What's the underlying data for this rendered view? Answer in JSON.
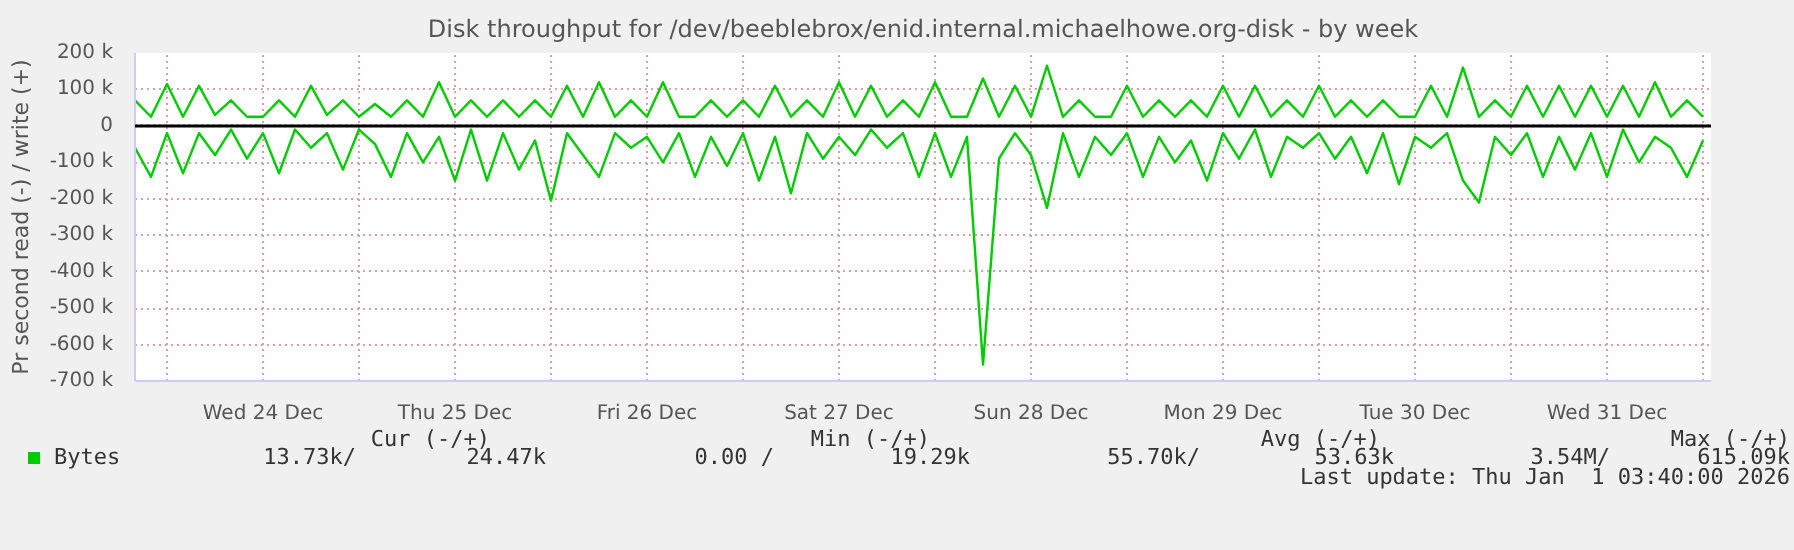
{
  "chart_data": {
    "type": "line",
    "title": "Disk throughput for /dev/beeblebrox/enid.internal.michaelhowe.org-disk - by week",
    "ylabel": "Pr second read (-) / write (+)",
    "x": [
      "2025-12-23T20:00",
      "2025-12-23T22:00",
      "2025-12-24T00:00",
      "2025-12-24T02:00",
      "2025-12-24T04:00",
      "2025-12-24T06:00",
      "2025-12-24T08:00",
      "2025-12-24T10:00",
      "2025-12-24T12:00",
      "2025-12-24T14:00",
      "2025-12-24T16:00",
      "2025-12-24T18:00",
      "2025-12-24T20:00",
      "2025-12-24T22:00",
      "2025-12-25T00:00",
      "2025-12-25T02:00",
      "2025-12-25T04:00",
      "2025-12-25T06:00",
      "2025-12-25T08:00",
      "2025-12-25T10:00",
      "2025-12-25T12:00",
      "2025-12-25T14:00",
      "2025-12-25T16:00",
      "2025-12-25T18:00",
      "2025-12-25T20:00",
      "2025-12-25T22:00",
      "2025-12-26T00:00",
      "2025-12-26T02:00",
      "2025-12-26T04:00",
      "2025-12-26T06:00",
      "2025-12-26T08:00",
      "2025-12-26T10:00",
      "2025-12-26T12:00",
      "2025-12-26T14:00",
      "2025-12-26T16:00",
      "2025-12-26T18:00",
      "2025-12-26T20:00",
      "2025-12-26T22:00",
      "2025-12-27T00:00",
      "2025-12-27T02:00",
      "2025-12-27T04:00",
      "2025-12-27T06:00",
      "2025-12-27T08:00",
      "2025-12-27T10:00",
      "2025-12-27T12:00",
      "2025-12-27T14:00",
      "2025-12-27T16:00",
      "2025-12-27T18:00",
      "2025-12-27T20:00",
      "2025-12-27T22:00",
      "2025-12-28T00:00",
      "2025-12-28T02:00",
      "2025-12-28T04:00",
      "2025-12-28T06:00",
      "2025-12-28T08:00",
      "2025-12-28T10:00",
      "2025-12-28T12:00",
      "2025-12-28T14:00",
      "2025-12-28T16:00",
      "2025-12-28T18:00",
      "2025-12-28T20:00",
      "2025-12-28T22:00",
      "2025-12-29T00:00",
      "2025-12-29T02:00",
      "2025-12-29T04:00",
      "2025-12-29T06:00",
      "2025-12-29T08:00",
      "2025-12-29T10:00",
      "2025-12-29T12:00",
      "2025-12-29T14:00",
      "2025-12-29T16:00",
      "2025-12-29T18:00",
      "2025-12-29T20:00",
      "2025-12-29T22:00",
      "2025-12-30T00:00",
      "2025-12-30T02:00",
      "2025-12-30T04:00",
      "2025-12-30T06:00",
      "2025-12-30T08:00",
      "2025-12-30T10:00",
      "2025-12-30T12:00",
      "2025-12-30T14:00",
      "2025-12-30T16:00",
      "2025-12-30T18:00",
      "2025-12-30T20:00",
      "2025-12-30T22:00",
      "2025-12-31T00:00",
      "2025-12-31T02:00",
      "2025-12-31T04:00",
      "2025-12-31T06:00",
      "2025-12-31T08:00",
      "2025-12-31T10:00",
      "2025-12-31T12:00",
      "2025-12-31T14:00",
      "2025-12-31T16:00",
      "2025-12-31T18:00",
      "2025-12-31T20:00",
      "2025-12-31T22:00",
      "2026-01-01T00:00"
    ],
    "series": [
      {
        "name": "Bytes",
        "color": "#00cc00",
        "values": [
          70000,
          25000,
          115000,
          25000,
          110000,
          30000,
          70000,
          25000,
          25000,
          70000,
          25000,
          110000,
          30000,
          70000,
          25000,
          60000,
          25000,
          70000,
          25000,
          120000,
          25000,
          70000,
          25000,
          70000,
          25000,
          70000,
          25000,
          110000,
          25000,
          120000,
          25000,
          70000,
          25000,
          120000,
          25000,
          25000,
          70000,
          25000,
          70000,
          25000,
          110000,
          25000,
          70000,
          25000,
          120000,
          25000,
          110000,
          25000,
          70000,
          25000,
          120000,
          25000,
          25000,
          130000,
          25000,
          110000,
          25000,
          165000,
          25000,
          70000,
          25000,
          25000,
          110000,
          25000,
          70000,
          25000,
          70000,
          25000,
          110000,
          25000,
          110000,
          25000,
          70000,
          25000,
          110000,
          25000,
          70000,
          25000,
          70000,
          25000,
          25000,
          110000,
          25000,
          160000,
          25000,
          70000,
          25000,
          110000,
          25000,
          110000,
          25000,
          110000,
          25000,
          110000,
          25000,
          120000,
          25000,
          70000,
          25000
        ]
      },
      {
        "color": "#00cc00",
        "values": [
          -60000,
          -140000,
          -20000,
          -130000,
          -20000,
          -80000,
          -10000,
          -90000,
          -20000,
          -130000,
          -10000,
          -60000,
          -20000,
          -120000,
          -10000,
          -50000,
          -140000,
          -20000,
          -100000,
          -30000,
          -150000,
          -10000,
          -150000,
          -20000,
          -120000,
          -40000,
          -205000,
          -20000,
          -80000,
          -140000,
          -20000,
          -60000,
          -30000,
          -100000,
          -20000,
          -140000,
          -30000,
          -110000,
          -20000,
          -150000,
          -30000,
          -185000,
          -20000,
          -90000,
          -30000,
          -80000,
          -10000,
          -60000,
          -20000,
          -140000,
          -20000,
          -140000,
          -30000,
          -655000,
          -90000,
          -20000,
          -80000,
          -225000,
          -20000,
          -140000,
          -30000,
          -80000,
          -20000,
          -140000,
          -30000,
          -100000,
          -40000,
          -150000,
          -20000,
          -90000,
          -10000,
          -140000,
          -30000,
          -60000,
          -20000,
          -90000,
          -30000,
          -130000,
          -20000,
          -160000,
          -30000,
          -60000,
          -20000,
          -150000,
          -210000,
          -30000,
          -80000,
          -20000,
          -140000,
          -30000,
          -120000,
          -20000,
          -140000,
          -10000,
          -100000,
          -30000,
          -60000,
          -140000,
          -40000
        ]
      }
    ],
    "xlim": [
      "2025-12-23T20:00",
      "2026-01-01T01:00"
    ],
    "xticks": [
      {
        "value": "2025-12-24T00:00",
        "label": null
      },
      {
        "value": "2025-12-24T12:00",
        "label": "Wed 24 Dec"
      },
      {
        "value": "2025-12-25T00:00",
        "label": null
      },
      {
        "value": "2025-12-25T12:00",
        "label": "Thu 25 Dec"
      },
      {
        "value": "2025-12-26T00:00",
        "label": null
      },
      {
        "value": "2025-12-26T12:00",
        "label": "Fri 26 Dec"
      },
      {
        "value": "2025-12-27T00:00",
        "label": null
      },
      {
        "value": "2025-12-27T12:00",
        "label": "Sat 27 Dec"
      },
      {
        "value": "2025-12-28T00:00",
        "label": null
      },
      {
        "value": "2025-12-28T12:00",
        "label": "Sun 28 Dec"
      },
      {
        "value": "2025-12-29T00:00",
        "label": null
      },
      {
        "value": "2025-12-29T12:00",
        "label": "Mon 29 Dec"
      },
      {
        "value": "2025-12-30T00:00",
        "label": null
      },
      {
        "value": "2025-12-30T12:00",
        "label": "Tue 30 Dec"
      },
      {
        "value": "2025-12-31T00:00",
        "label": null
      },
      {
        "value": "2025-12-31T12:00",
        "label": "Wed 31 Dec"
      },
      {
        "value": "2026-01-01T00:00",
        "label": null
      }
    ],
    "ylim": [
      -700000,
      200000
    ],
    "yticks": [
      {
        "value": -700000,
        "label": "-700 k"
      },
      {
        "value": -600000,
        "label": "-600 k"
      },
      {
        "value": -500000,
        "label": "-500 k"
      },
      {
        "value": -400000,
        "label": "-400 k"
      },
      {
        "value": -300000,
        "label": "-300 k"
      },
      {
        "value": -200000,
        "label": "-200 k"
      },
      {
        "value": -100000,
        "label": "-100 k"
      },
      {
        "value": 0,
        "label": "0"
      },
      {
        "value": 100000,
        "label": "100 k"
      },
      {
        "value": 200000,
        "label": "200 k"
      }
    ],
    "ref_lines": [
      {
        "axis": "y",
        "value": 0,
        "color": "#000000"
      }
    ],
    "grid": true,
    "legend": "bottom left",
    "marker": "none",
    "line_style": "solid",
    "annotations": [
      "Cur (-/+)",
      "Min (-/+)",
      "Avg (-/+)",
      "Max (-/+)",
      "13.73k/",
      "24.47k",
      "0.00 /",
      "19.29k",
      "55.70k/",
      "53.63k",
      "3.54M/",
      "615.09k",
      "Last update: Thu Jan  1 03:40:00 2026"
    ]
  }
}
